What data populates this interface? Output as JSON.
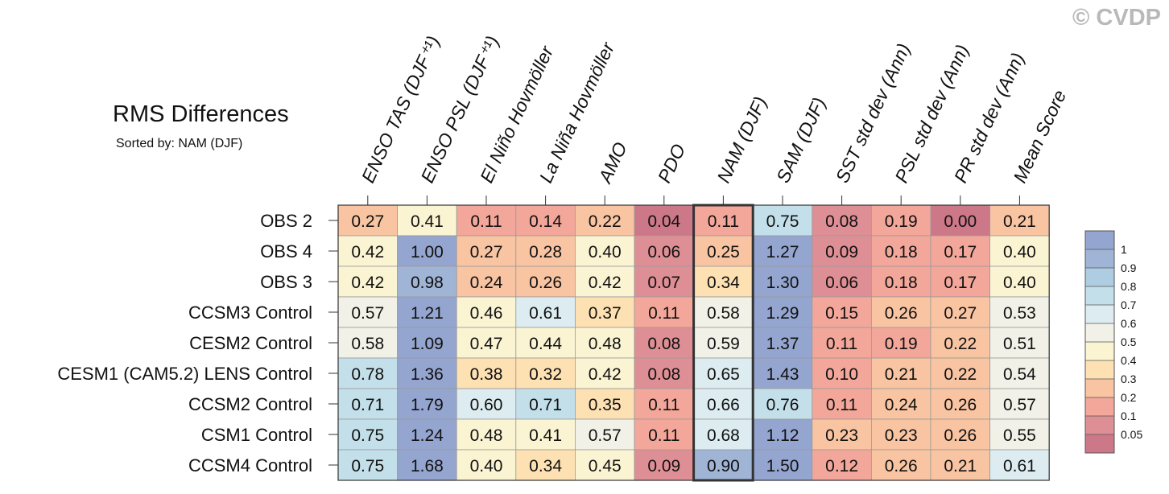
{
  "chart_data": {
    "type": "heatmap",
    "title": "RMS Differences",
    "subtitle": "Sorted by: NAM (DJF)",
    "copyright": "© CVDP",
    "columns": [
      "ENSO TAS (DJF⁺¹)",
      "ENSO PSL (DJF⁺¹)",
      "El Niño Hovmöller",
      "La Niña Hovmöller",
      "AMO",
      "PDO",
      "NAM (DJF)",
      "SAM (DJF)",
      "SST std dev (Ann)",
      "PSL std dev (Ann)",
      "PR std dev (Ann)",
      "Mean Score"
    ],
    "rows": [
      "OBS 2",
      "OBS 4",
      "OBS 3",
      "CCSM3 Control",
      "CESM2 Control",
      "CESM1 (CAM5.2) LENS Control",
      "CCSM2 Control",
      "CSM1 Control",
      "CCSM4 Control"
    ],
    "values": [
      [
        "0.27",
        "0.41",
        "0.11",
        "0.14",
        "0.22",
        "0.04",
        "0.11",
        "0.75",
        "0.08",
        "0.19",
        "0.00",
        "0.21"
      ],
      [
        "0.42",
        "1.00",
        "0.27",
        "0.28",
        "0.40",
        "0.06",
        "0.25",
        "1.27",
        "0.09",
        "0.18",
        "0.17",
        "0.40"
      ],
      [
        "0.42",
        "0.98",
        "0.24",
        "0.26",
        "0.42",
        "0.07",
        "0.34",
        "1.30",
        "0.06",
        "0.18",
        "0.17",
        "0.40"
      ],
      [
        "0.57",
        "1.21",
        "0.46",
        "0.61",
        "0.37",
        "0.11",
        "0.58",
        "1.29",
        "0.15",
        "0.26",
        "0.27",
        "0.53"
      ],
      [
        "0.58",
        "1.09",
        "0.47",
        "0.44",
        "0.48",
        "0.08",
        "0.59",
        "1.37",
        "0.11",
        "0.19",
        "0.22",
        "0.51"
      ],
      [
        "0.78",
        "1.36",
        "0.38",
        "0.32",
        "0.42",
        "0.08",
        "0.65",
        "1.43",
        "0.10",
        "0.21",
        "0.22",
        "0.54"
      ],
      [
        "0.71",
        "1.79",
        "0.60",
        "0.71",
        "0.35",
        "0.11",
        "0.66",
        "0.76",
        "0.11",
        "0.24",
        "0.26",
        "0.57"
      ],
      [
        "0.75",
        "1.24",
        "0.48",
        "0.41",
        "0.57",
        "0.11",
        "0.68",
        "1.12",
        "0.23",
        "0.23",
        "0.26",
        "0.55"
      ],
      [
        "0.75",
        "1.68",
        "0.40",
        "0.34",
        "0.45",
        "0.09",
        "0.90",
        "1.50",
        "0.12",
        "0.26",
        "0.21",
        "0.61"
      ]
    ],
    "highlighted_column": "NAM (DJF)",
    "colorbar": {
      "levels": [
        "0.05",
        "0.1",
        "0.2",
        "0.3",
        "0.4",
        "0.5",
        "0.6",
        "0.7",
        "0.8",
        "0.9",
        "1"
      ],
      "thresholds": [
        0.05,
        0.1,
        0.2,
        0.3,
        0.4,
        0.5,
        0.6,
        0.7,
        0.8,
        0.9,
        1.0
      ],
      "colors": [
        "#cc7888",
        "#de8f95",
        "#f2a79a",
        "#f8c4a2",
        "#fde1b2",
        "#fbf4d3",
        "#f1f1e8",
        "#dcecf0",
        "#c3e0ea",
        "#aecde3",
        "#a0b4d6",
        "#94a5d0"
      ]
    }
  }
}
